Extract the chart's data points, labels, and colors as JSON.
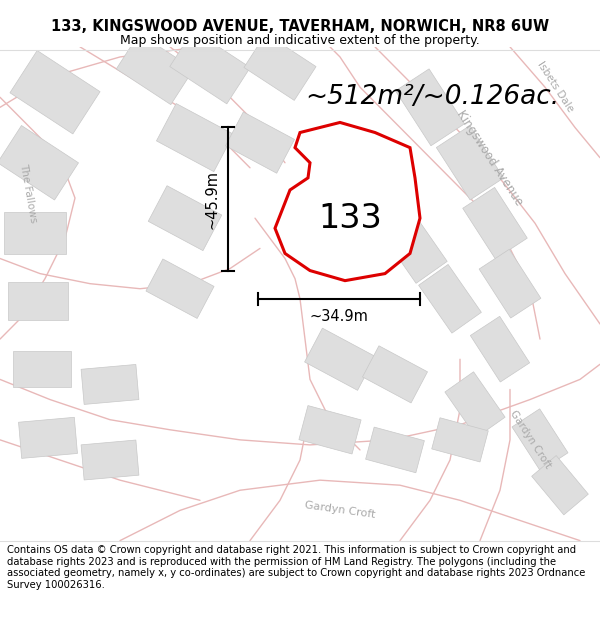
{
  "title_line1": "133, KINGSWOOD AVENUE, TAVERHAM, NORWICH, NR8 6UW",
  "title_line2": "Map shows position and indicative extent of the property.",
  "footer_text": "Contains OS data © Crown copyright and database right 2021. This information is subject to Crown copyright and database rights 2023 and is reproduced with the permission of HM Land Registry. The polygons (including the associated geometry, namely x, y co-ordinates) are subject to Crown copyright and database rights 2023 Ordnance Survey 100026316.",
  "area_label": "~512m²/~0.126ac.",
  "label_133": "133",
  "dim_vertical": "~45.9m",
  "dim_horizontal": "~34.9m",
  "map_bg": "#f7f4f2",
  "plot_color_fill": "#ffffff",
  "plot_color_edge": "#dd0000",
  "road_fill": "#f0e8e8",
  "road_edge": "#e8b8b8",
  "building_color": "#dedede",
  "building_edge": "#c8c8c8",
  "street_label_color": "#aaaaaa",
  "title_fontsize": 10.5,
  "subtitle_fontsize": 9,
  "footer_fontsize": 7.2,
  "area_fontsize": 19,
  "label_133_fontsize": 24,
  "dim_fontsize": 10.5
}
